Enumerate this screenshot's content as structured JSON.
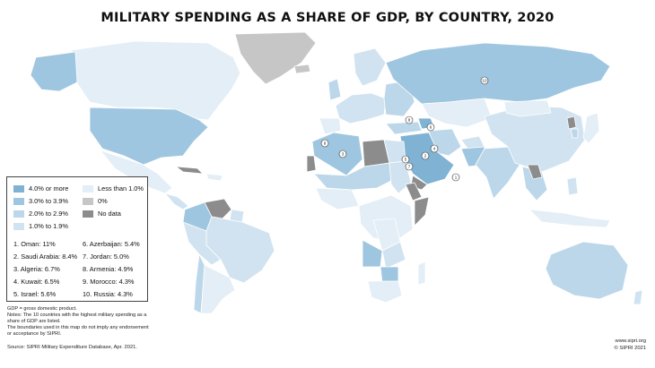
{
  "title": "MILITARY SPENDING AS A SHARE OF GDP, BY COUNTRY, 2020",
  "colors": {
    "cat_4plus": "#7fb2d3",
    "cat_3to39": "#9fc6e0",
    "cat_2to29": "#bcd7ea",
    "cat_1to19": "#d1e3f0",
    "cat_lt1": "#e3eef6",
    "cat_zero": "#c6c6c6",
    "cat_nodata": "#8c8c8c",
    "ocean": "#ffffff"
  },
  "legend": {
    "items": [
      {
        "label": "4.0% or more",
        "color": "#7fb2d3"
      },
      {
        "label": "3.0% to 3.9%",
        "color": "#9fc6e0"
      },
      {
        "label": "2.0% to 2.9%",
        "color": "#bcd7ea"
      },
      {
        "label": "1.0% to 1.9%",
        "color": "#d1e3f0"
      },
      {
        "label": "Less than 1.0%",
        "color": "#e3eef6"
      },
      {
        "label": "0%",
        "color": "#c6c6c6"
      },
      {
        "label": "No data",
        "color": "#8c8c8c"
      }
    ],
    "ranking": [
      "1. Oman: 11%",
      "2. Saudi Arabia: 8.4%",
      "3. Algeria: 6.7%",
      "4. Kuwait: 6.5%",
      "5. Israel: 5.6%",
      "6. Azerbaijan: 5.4%",
      "7. Jordan: 5.0%",
      "8. Armenia: 4.9%",
      "9. Morocco: 4.3%",
      "10. Russia: 4.3%"
    ]
  },
  "map_markers": [
    {
      "rank": "1",
      "country": "Oman"
    },
    {
      "rank": "2",
      "country": "Saudi Arabia"
    },
    {
      "rank": "3",
      "country": "Algeria"
    },
    {
      "rank": "4",
      "country": "Kuwait"
    },
    {
      "rank": "5",
      "country": "Israel"
    },
    {
      "rank": "6",
      "country": "Azerbaijan"
    },
    {
      "rank": "7",
      "country": "Jordan"
    },
    {
      "rank": "8",
      "country": "Armenia"
    },
    {
      "rank": "9",
      "country": "Morocco"
    },
    {
      "rank": "10",
      "country": "Russia"
    }
  ],
  "notes": [
    "GDP = gross domestic product.",
    "Notes: The 10 countries with the highest military spending as a",
    "share of GDP are listed.",
    "The boundaries used in this map do not imply any endorsement",
    "or acceptance by SIPRI."
  ],
  "source": "Source: SIPRI Military Expenditure Database, Apr. 2021.",
  "credit": {
    "url": "www.sipri.org",
    "copyright": "© SIPRI 2021"
  }
}
